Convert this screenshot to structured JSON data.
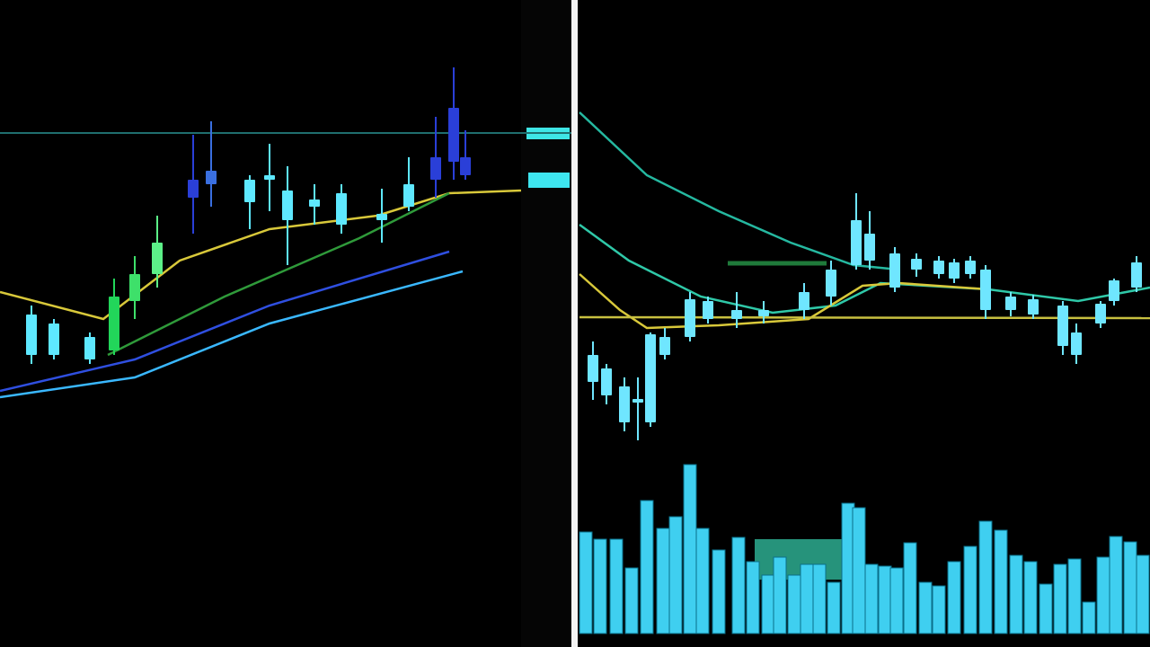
{
  "chart_data": [
    {
      "type": "candlestick",
      "xlim": [
        0,
        580
      ],
      "ylim": [
        0,
        720
      ],
      "x": [
        35,
        60,
        100,
        127,
        150,
        175,
        215,
        235,
        278,
        300,
        320,
        350,
        380,
        425,
        455,
        485,
        505,
        518
      ],
      "open": [
        325,
        325,
        320,
        330,
        385,
        415,
        500,
        515,
        495,
        520,
        475,
        490,
        470,
        475,
        490,
        520,
        540,
        525
      ],
      "high": [
        380,
        365,
        350,
        410,
        435,
        480,
        570,
        585,
        525,
        560,
        535,
        515,
        515,
        510,
        545,
        590,
        645,
        575
      ],
      "low": [
        315,
        320,
        315,
        325,
        365,
        400,
        460,
        490,
        465,
        485,
        425,
        470,
        460,
        450,
        485,
        500,
        520,
        520
      ],
      "close": [
        370,
        360,
        345,
        390,
        415,
        450,
        520,
        530,
        520,
        525,
        508,
        498,
        505,
        482,
        515,
        545,
        600,
        545
      ],
      "candle_colors": [
        "#5ee8ff",
        "#5ee8ff",
        "#5ee8ff",
        "#22d65a",
        "#3ee06a",
        "#5cf088",
        "#2a3fd8",
        "#3a6fe0",
        "#5ee8ff",
        "#5ee8ff",
        "#5ee8ff",
        "#5ee8ff",
        "#5ee8ff",
        "#5ee8ff",
        "#5ee8ff",
        "#2a3fd8",
        "#2a3fd8",
        "#2a3fd8"
      ],
      "hline": {
        "value": 572,
        "color": "#1f6f6f"
      },
      "lines": [
        {
          "color": "#d8c83a",
          "x": [
            0,
            115,
            200,
            300,
            420,
            500,
            580
          ],
          "values": [
            395,
            365,
            430,
            465,
            480,
            505,
            508
          ]
        },
        {
          "color": "#2f9a3a",
          "x": [
            120,
            250,
            400,
            500
          ],
          "values": [
            325,
            390,
            455,
            505
          ]
        },
        {
          "color": "#2f4fe0",
          "x": [
            0,
            150,
            300,
            500
          ],
          "values": [
            285,
            320,
            380,
            440
          ]
        },
        {
          "color": "#3ab8ff",
          "x": [
            0,
            150,
            300,
            515
          ],
          "values": [
            278,
            300,
            360,
            418
          ]
        }
      ]
    },
    {
      "type": "candlestick",
      "xlim": [
        645,
        1280
      ],
      "ylim": [
        0,
        720
      ],
      "x": [
        660,
        675,
        695,
        710,
        724,
        740,
        768,
        788,
        820,
        850,
        895,
        925,
        953,
        968,
        996,
        1020,
        1045,
        1062,
        1080,
        1097,
        1125,
        1150,
        1183,
        1198,
        1225,
        1240,
        1265
      ],
      "open": [
        295,
        280,
        250,
        272,
        250,
        325,
        345,
        365,
        365,
        368,
        375,
        390,
        425,
        430,
        400,
        420,
        415,
        410,
        415,
        375,
        375,
        370,
        335,
        325,
        360,
        385,
        400
      ],
      "high": [
        340,
        315,
        300,
        300,
        350,
        355,
        395,
        390,
        395,
        385,
        405,
        430,
        505,
        485,
        445,
        438,
        435,
        432,
        435,
        425,
        395,
        392,
        385,
        360,
        385,
        410,
        435
      ],
      "low": [
        275,
        270,
        240,
        230,
        245,
        320,
        340,
        360,
        355,
        360,
        365,
        380,
        420,
        420,
        395,
        412,
        410,
        405,
        410,
        365,
        368,
        365,
        325,
        315,
        355,
        380,
        395
      ],
      "close": [
        325,
        310,
        290,
        276,
        348,
        345,
        387,
        385,
        375,
        375,
        395,
        420,
        475,
        460,
        438,
        432,
        430,
        428,
        430,
        420,
        390,
        387,
        380,
        350,
        382,
        408,
        428
      ],
      "color": "#6fe6ff",
      "lines": [
        {
          "color": "#25b8a0",
          "x": [
            645,
            720,
            800,
            880,
            950,
            1000
          ],
          "values": [
            595,
            525,
            485,
            450,
            425,
            420
          ]
        },
        {
          "color": "#2fc8a8",
          "x": [
            645,
            700,
            780,
            860,
            930,
            980,
            1100,
            1200,
            1280
          ],
          "values": [
            470,
            430,
            390,
            372,
            380,
            405,
            398,
            385,
            400
          ]
        },
        {
          "color": "#d8c83a",
          "x": [
            645,
            690,
            720,
            800,
            900,
            960,
            1000,
            1100
          ],
          "values": [
            415,
            375,
            355,
            358,
            365,
            402,
            405,
            398
          ]
        },
        {
          "color": "#c8c040",
          "x": [
            645,
            1280
          ],
          "values": [
            367,
            366
          ]
        }
      ]
    },
    {
      "type": "bar",
      "xlim": [
        645,
        1280
      ],
      "ylim": [
        0,
        190
      ],
      "color": "#3fcff0",
      "x": [
        652,
        668,
        686,
        703,
        720,
        738,
        752,
        768,
        782,
        800,
        822,
        838,
        855,
        868,
        884,
        898,
        912,
        928,
        944,
        956,
        970,
        985,
        998,
        1013,
        1030,
        1045,
        1062,
        1080,
        1097,
        1114,
        1131,
        1147,
        1164,
        1180,
        1196,
        1212,
        1228,
        1242,
        1258,
        1272
      ],
      "values": [
        113,
        105,
        105,
        73,
        148,
        117,
        130,
        188,
        117,
        93,
        107,
        80,
        65,
        85,
        65,
        77,
        77,
        57,
        145,
        140,
        77,
        75,
        73,
        101,
        57,
        53,
        80,
        97,
        125,
        115,
        87,
        80,
        55,
        77,
        83,
        35,
        85,
        108,
        102,
        87
      ]
    }
  ]
}
